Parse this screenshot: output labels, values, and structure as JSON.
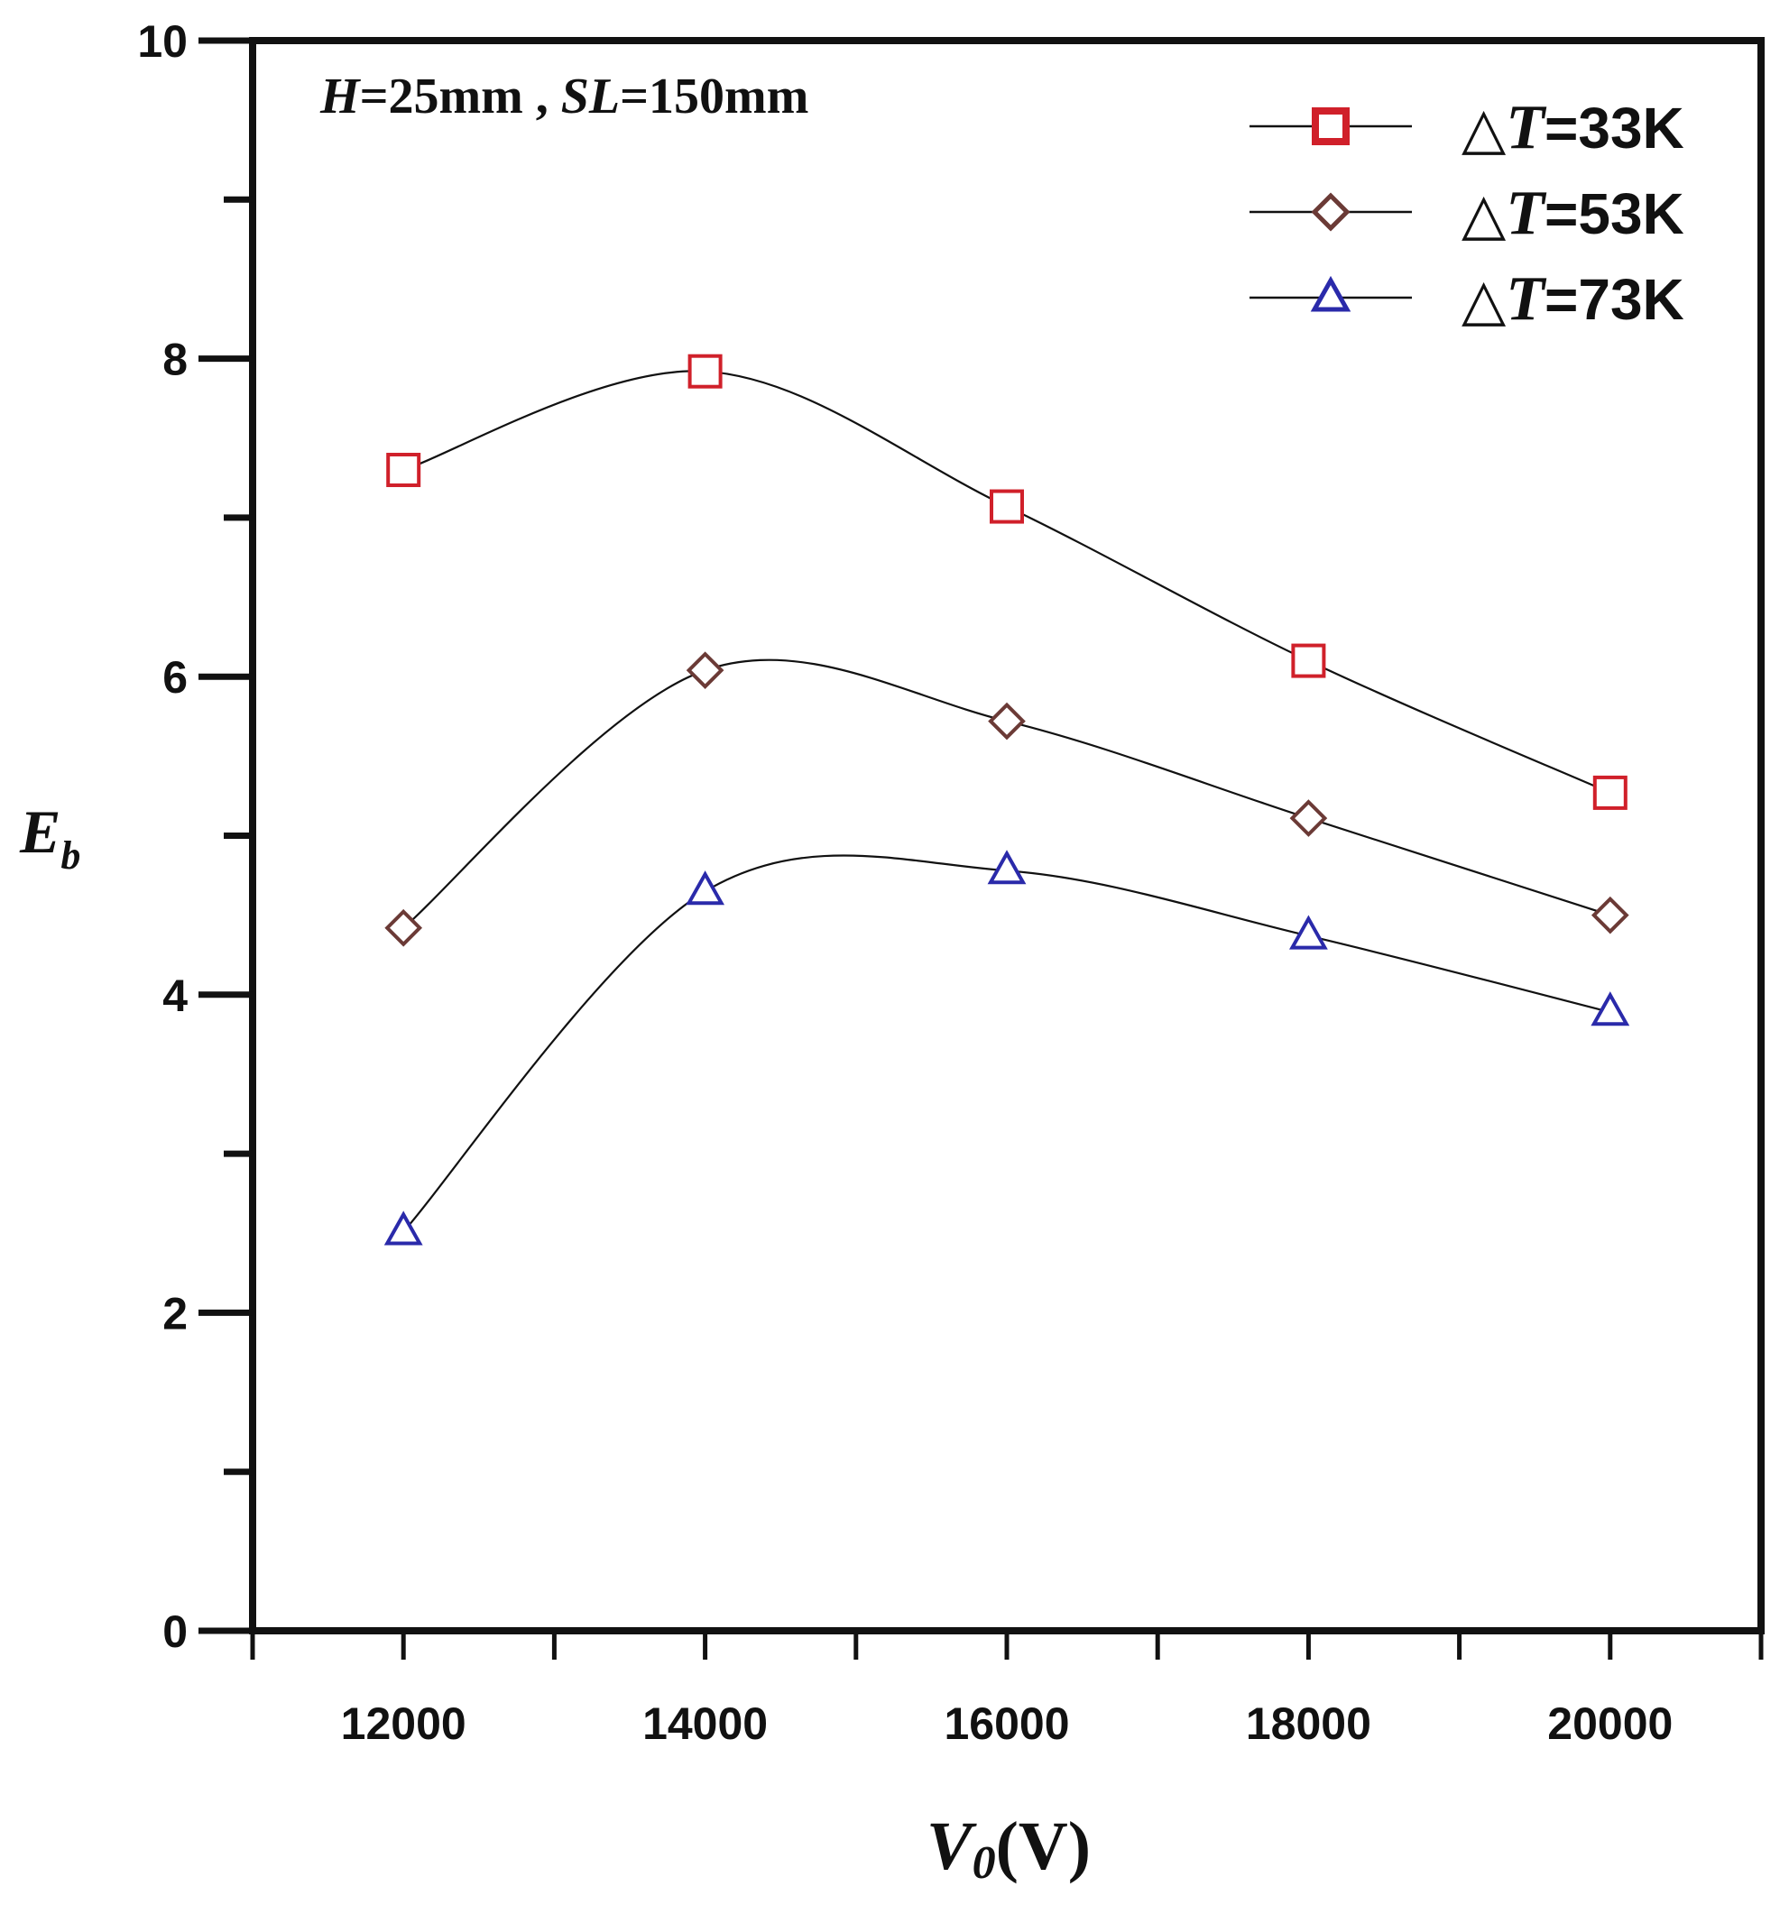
{
  "chart_data": {
    "type": "line",
    "title": "",
    "annotation": {
      "h_var": "H",
      "h_rest": "=25mm ,",
      "sl_var": "SL",
      "sl_rest": "=150mm"
    },
    "xlabel": {
      "var": "V",
      "sub": "0",
      "unit": "(V)"
    },
    "ylabel": {
      "var": "E",
      "sub": "b"
    },
    "xlim": [
      11000,
      21000
    ],
    "ylim": [
      0,
      10
    ],
    "x_ticks_major": [
      12000,
      14000,
      16000,
      18000,
      20000
    ],
    "x_tick_labels": [
      "12000",
      "14000",
      "16000",
      "18000",
      "20000"
    ],
    "x_ticks_minor": [
      11000,
      13000,
      15000,
      17000,
      19000,
      21000
    ],
    "y_ticks_major": [
      0,
      2,
      4,
      6,
      8,
      10
    ],
    "y_tick_labels": [
      "0",
      "2",
      "4",
      "6",
      "8",
      "10"
    ],
    "y_ticks_minor": [
      1,
      3,
      5,
      7,
      9
    ],
    "x": [
      12000,
      14000,
      16000,
      18000,
      20000
    ],
    "series": [
      {
        "name": "△T=33K",
        "name_prefix": "△",
        "name_var": "T",
        "name_rest": "=33K",
        "marker": "square",
        "color": "#d0202a",
        "values": [
          7.3,
          7.92,
          7.07,
          6.1,
          5.27
        ]
      },
      {
        "name": "△T=53K",
        "name_prefix": "△",
        "name_var": "T",
        "name_rest": "=53K",
        "marker": "diamond",
        "color": "#6b3a36",
        "values": [
          4.42,
          6.04,
          5.72,
          5.11,
          4.5
        ]
      },
      {
        "name": "△T=73K",
        "name_prefix": "△",
        "name_var": "T",
        "name_rest": "=73K",
        "marker": "triangle",
        "color": "#2a2aaa",
        "values": [
          2.51,
          4.65,
          4.78,
          4.37,
          3.89
        ]
      }
    ],
    "grid": false,
    "legend_position": "top-right",
    "line_color": "#111111"
  }
}
